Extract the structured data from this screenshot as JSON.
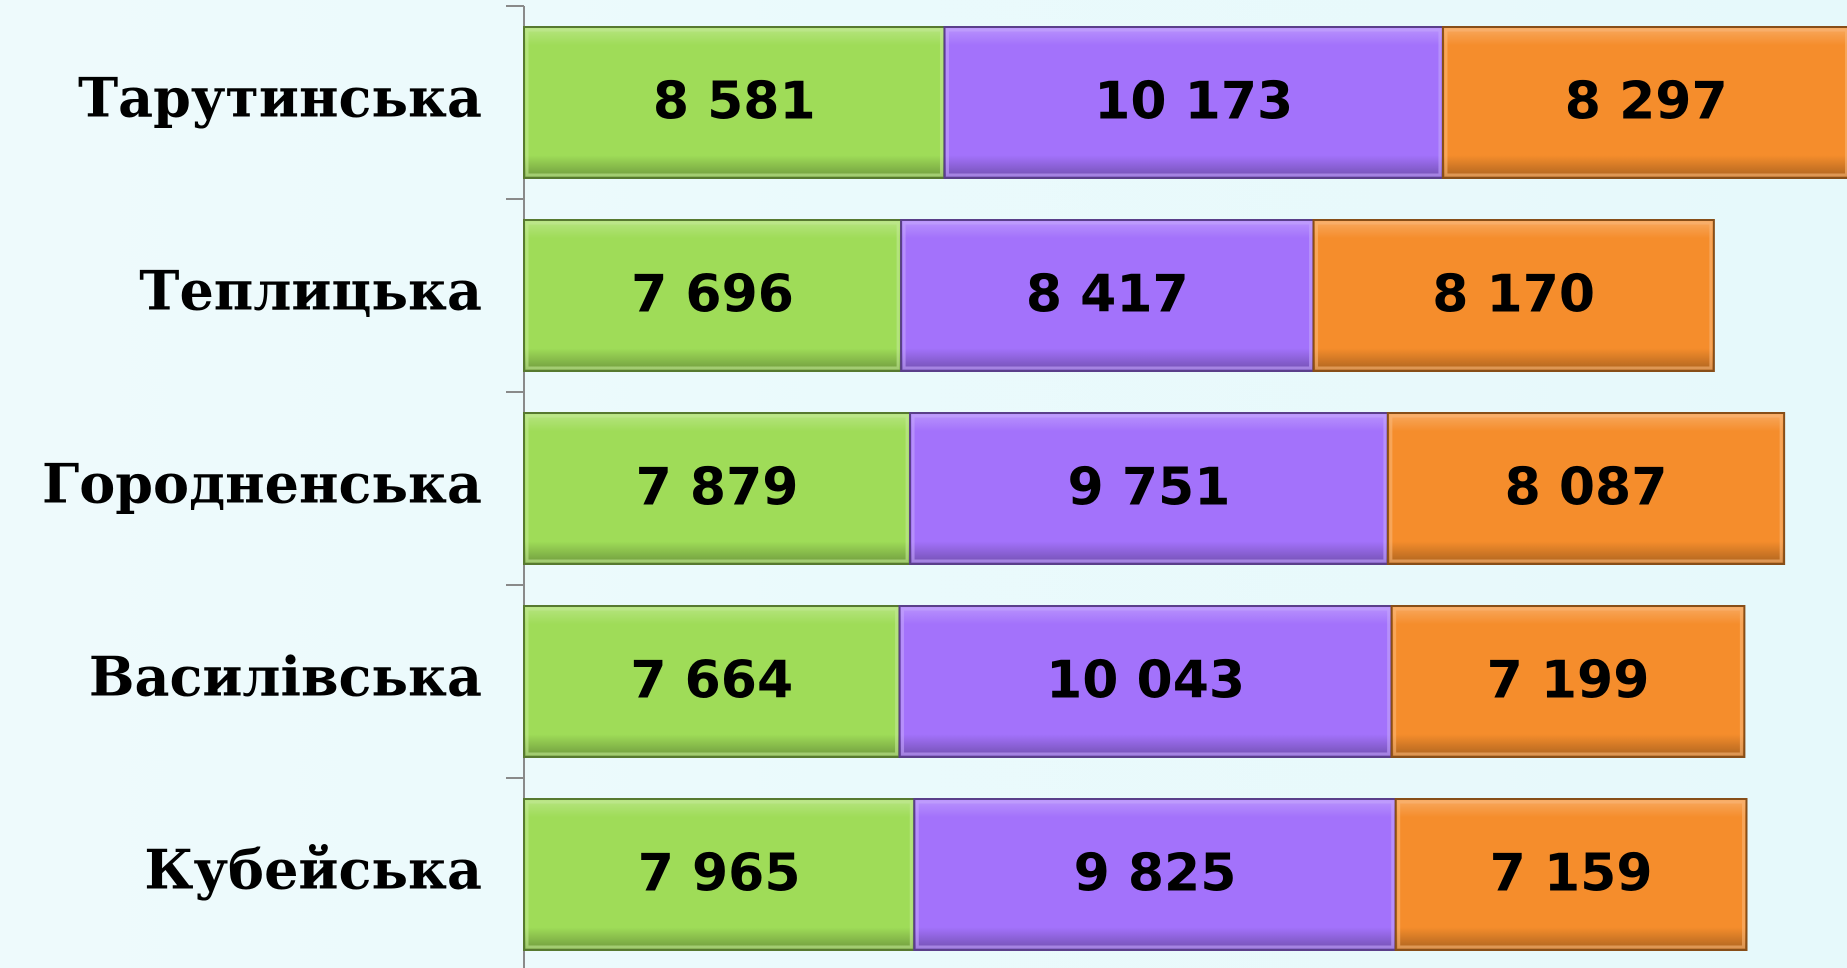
{
  "chart_data": {
    "type": "stacked-bar-horizontal",
    "categories": [
      "Тарутинська",
      "Теплицька",
      "Городненська",
      "Василівська",
      "Кубейська"
    ],
    "series": [
      {
        "color": "#9fdc58",
        "values": [
          8581,
          7696,
          7879,
          7664,
          7965
        ],
        "value_labels": [
          "8 581",
          "7 696",
          "7 879",
          "7 664",
          "7 965"
        ]
      },
      {
        "color": "#a372fb",
        "values": [
          10173,
          8417,
          9751,
          10043,
          9825
        ],
        "value_labels": [
          "10 173",
          "8 417",
          "9 751",
          "10 043",
          "9 825"
        ]
      },
      {
        "color": "#f58d2c",
        "values": [
          8297,
          8170,
          8087,
          7199,
          7159
        ],
        "value_labels": [
          "8 297",
          "8 170",
          "8 087",
          "7 199",
          "7 159"
        ]
      }
    ]
  }
}
